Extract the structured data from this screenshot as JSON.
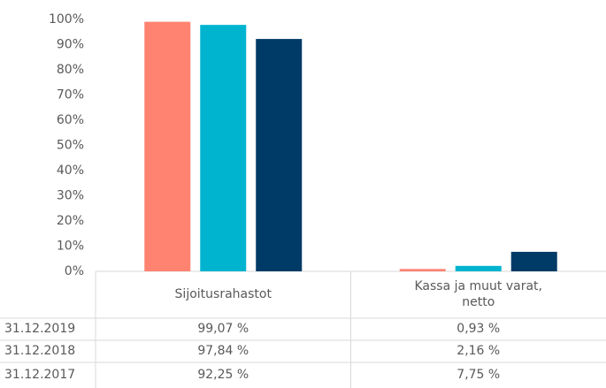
{
  "chart_data": {
    "type": "bar",
    "categories": [
      "Sijoitusrahastot",
      "Kassa ja muut varat, netto"
    ],
    "series": [
      {
        "name": "31.12.2019",
        "color": "#FF8370",
        "values": [
          99.07,
          0.93
        ],
        "value_labels": [
          "99,07 %",
          "0,93 %"
        ]
      },
      {
        "name": "31.12.2018",
        "color": "#00B4D0",
        "values": [
          97.84,
          2.16
        ],
        "value_labels": [
          "97,84 %",
          "2,16 %"
        ]
      },
      {
        "name": "31.12.2017",
        "color": "#003A66",
        "values": [
          92.25,
          7.75
        ],
        "value_labels": [
          "92,25 %",
          "7,75 %"
        ]
      }
    ],
    "ylim": [
      0,
      100
    ],
    "yticks": [
      {
        "value": 0,
        "label": "0%"
      },
      {
        "value": 10,
        "label": "10%"
      },
      {
        "value": 20,
        "label": "20%"
      },
      {
        "value": 30,
        "label": "30%"
      },
      {
        "value": 40,
        "label": "40%"
      },
      {
        "value": 50,
        "label": "50%"
      },
      {
        "value": 60,
        "label": "60%"
      },
      {
        "value": 70,
        "label": "70%"
      },
      {
        "value": 80,
        "label": "80%"
      },
      {
        "value": 90,
        "label": "90%"
      },
      {
        "value": 100,
        "label": "100%"
      }
    ],
    "grid": false
  }
}
